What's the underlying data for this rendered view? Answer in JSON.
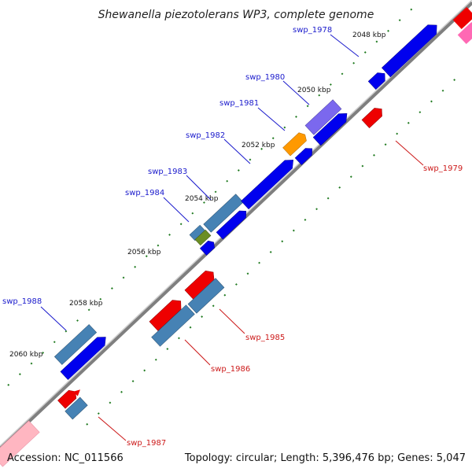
{
  "title": "Shewanella piezotolerans WP3, complete genome",
  "footer": {
    "accession": "Accession: NC_011566",
    "summary": "Topology: circular; Length: 5,396,476 bp; Genes: 5,047"
  },
  "colors": {
    "backbone": "#7f7f7f",
    "tick_dots": "#1f7a1f",
    "label_top_strand": "#1a1acc",
    "label_bottom_strand": "#cc1a1a",
    "blue": "#0000ee",
    "steel_blue": "#4682b4",
    "red": "#ee0000",
    "orange": "#ff9900",
    "slate": "#7b68ee",
    "olive": "#6b8e23",
    "pink": "#ff69b4",
    "light_pink": "#ffb6c1"
  },
  "ticks": [
    "2048 kbp",
    "2050 kbp",
    "2052 kbp",
    "2054 kbp",
    "2056 kbp",
    "2058 kbp",
    "2060 kbp"
  ],
  "labels": {
    "swp_1978": "swp_1978",
    "swp_1979": "swp_1979",
    "swp_1980": "swp_1980",
    "swp_1981": "swp_1981",
    "swp_1982": "swp_1982",
    "swp_1983": "swp_1983",
    "swp_1984": "swp_1984",
    "swp_1985": "swp_1985",
    "swp_1986": "swp_1986",
    "swp_1987": "swp_1987",
    "swp_1988": "swp_1988"
  }
}
